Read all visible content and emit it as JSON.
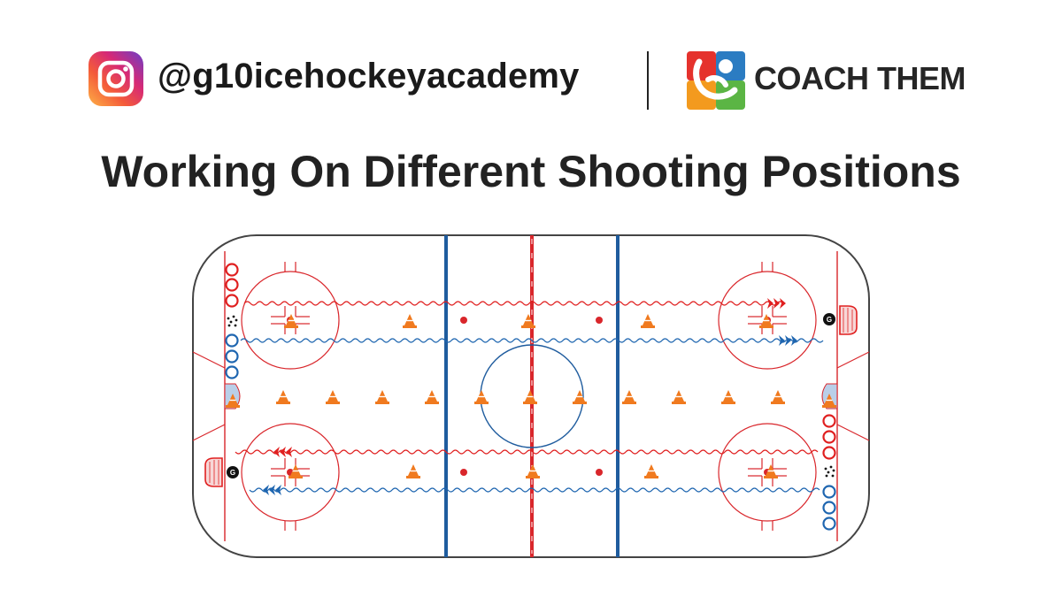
{
  "header": {
    "instagram_handle": "@g10icehockeyacademy",
    "brand_name": "COACH THEM",
    "instagram_icon": "instagram-icon",
    "brand_icon": "coach-them-logo"
  },
  "title": "Working On Different Shooting Positions",
  "rink": {
    "goalie_label": "G",
    "colors": {
      "board": "#444444",
      "red_line": "#d9262b",
      "blue_line": "#1f5c9e",
      "cone": "#f07a1f",
      "red_player": "#e02020",
      "blue_player": "#1f66b0",
      "crease": "#b9cfe8"
    }
  }
}
